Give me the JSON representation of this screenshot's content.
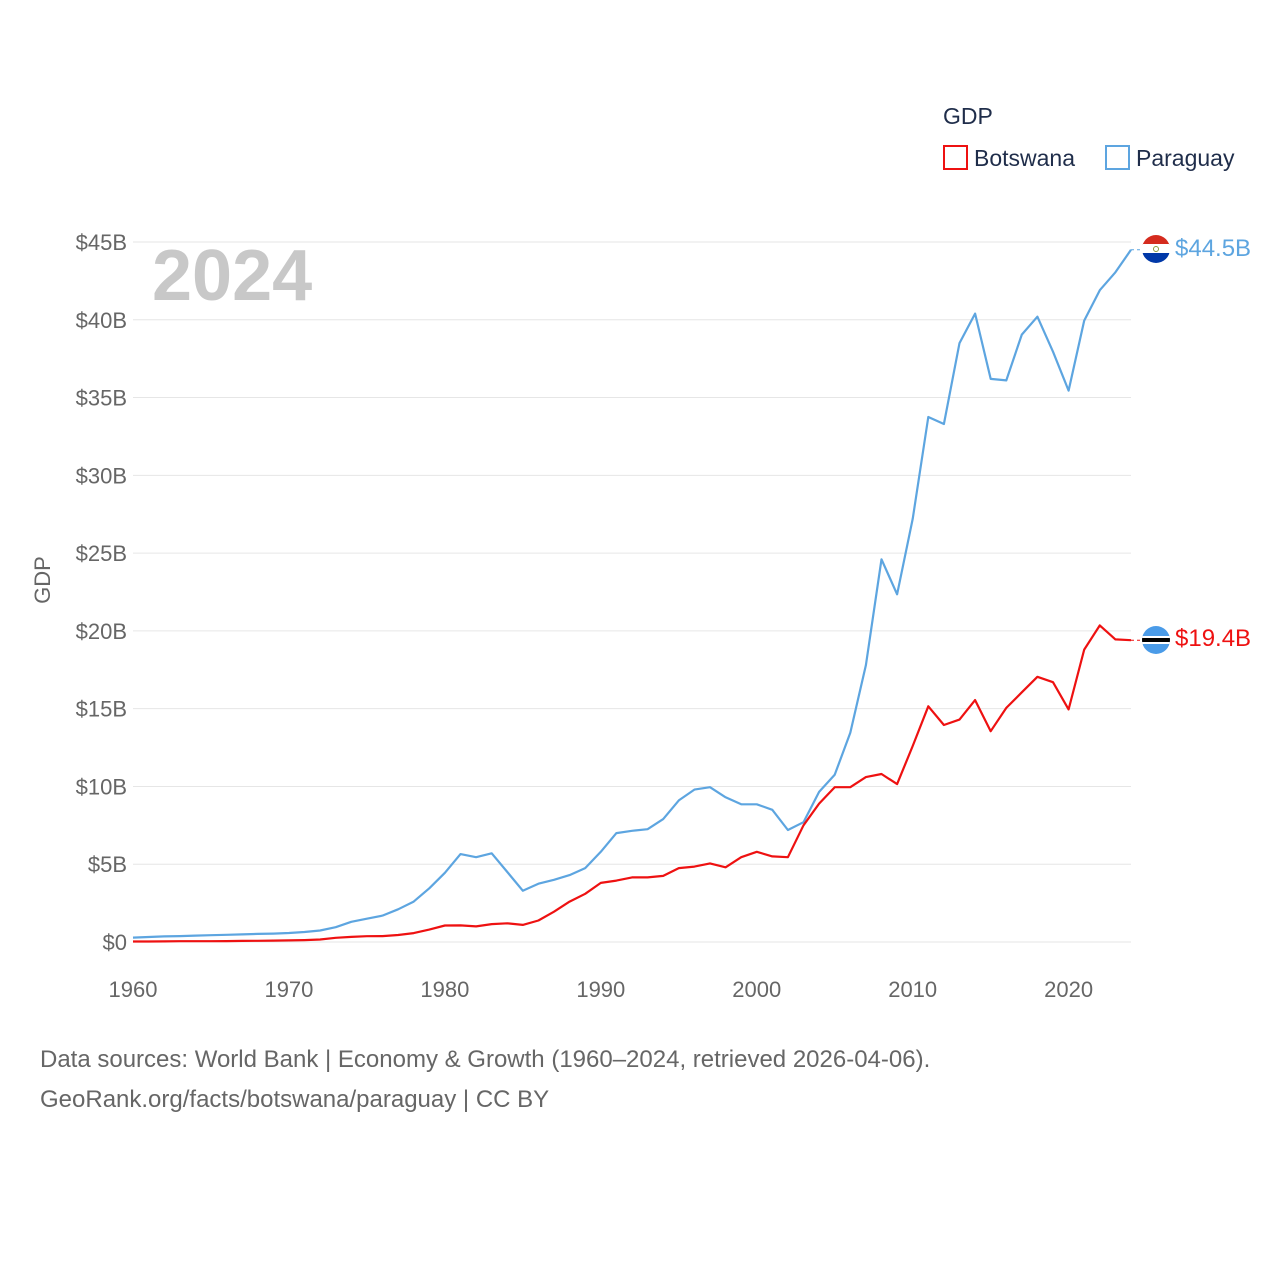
{
  "chart_data": {
    "type": "line",
    "year_label": "2024",
    "ylabel": "GDP",
    "legend": {
      "title": "GDP",
      "placement": "top-right"
    },
    "x": [
      1960,
      1961,
      1962,
      1963,
      1964,
      1965,
      1966,
      1967,
      1968,
      1969,
      1970,
      1971,
      1972,
      1973,
      1974,
      1975,
      1976,
      1977,
      1978,
      1979,
      1980,
      1981,
      1982,
      1983,
      1984,
      1985,
      1986,
      1987,
      1988,
      1989,
      1990,
      1991,
      1992,
      1993,
      1994,
      1995,
      1996,
      1997,
      1998,
      1999,
      2000,
      2001,
      2002,
      2003,
      2004,
      2005,
      2006,
      2007,
      2008,
      2009,
      2010,
      2011,
      2012,
      2013,
      2014,
      2015,
      2016,
      2017,
      2018,
      2019,
      2020,
      2021,
      2022,
      2023,
      2024
    ],
    "xlim": [
      1960,
      2024
    ],
    "xticks": [
      1960,
      1970,
      1980,
      1990,
      2000,
      2010,
      2020
    ],
    "ylim": [
      0,
      45
    ],
    "yticks": [
      0,
      5,
      10,
      15,
      20,
      25,
      30,
      35,
      40,
      45
    ],
    "ytick_labels": [
      "$0",
      "$5B",
      "$10B",
      "$15B",
      "$20B",
      "$25B",
      "$30B",
      "$35B",
      "$40B",
      "$45B"
    ],
    "series": [
      {
        "name": "Botswana",
        "color": "#ee1111",
        "end_label": "$19.4B",
        "flag": "botswana-flag",
        "values": [
          0.03,
          0.03,
          0.04,
          0.05,
          0.05,
          0.05,
          0.06,
          0.07,
          0.08,
          0.09,
          0.1,
          0.12,
          0.16,
          0.27,
          0.33,
          0.37,
          0.38,
          0.45,
          0.57,
          0.8,
          1.06,
          1.07,
          1.0,
          1.15,
          1.2,
          1.1,
          1.38,
          1.95,
          2.6,
          3.1,
          3.8,
          3.95,
          4.15,
          4.15,
          4.25,
          4.75,
          4.85,
          5.05,
          4.8,
          5.45,
          5.8,
          5.5,
          5.45,
          7.5,
          8.9,
          9.95,
          9.95,
          10.6,
          10.8,
          10.15,
          12.6,
          15.15,
          13.95,
          14.3,
          15.55,
          13.55,
          15.05,
          16.05,
          17.05,
          16.7,
          14.95,
          18.8,
          20.35,
          19.45,
          19.4
        ]
      },
      {
        "name": "Paraguay",
        "color": "#5da5e0",
        "end_label": "$44.5B",
        "flag": "paraguay-flag",
        "values": [
          0.28,
          0.32,
          0.36,
          0.38,
          0.41,
          0.44,
          0.46,
          0.49,
          0.52,
          0.54,
          0.58,
          0.64,
          0.74,
          0.95,
          1.3,
          1.5,
          1.7,
          2.1,
          2.6,
          3.45,
          4.45,
          5.65,
          5.45,
          5.7,
          4.5,
          3.3,
          3.75,
          4.0,
          4.3,
          4.75,
          5.8,
          7.0,
          7.15,
          7.25,
          7.9,
          9.1,
          9.8,
          9.95,
          9.3,
          8.85,
          8.85,
          8.5,
          7.2,
          7.7,
          9.65,
          10.75,
          13.45,
          17.8,
          24.6,
          22.35,
          27.2,
          33.75,
          33.3,
          38.5,
          40.4,
          36.2,
          36.1,
          39.05,
          40.2,
          37.95,
          35.45,
          39.95,
          41.9,
          43.05,
          44.5
        ]
      }
    ]
  },
  "footer": {
    "line1": "Data sources: World Bank | Economy & Growth (1960–2024, retrieved 2026-04-06).",
    "line2": "GeoRank.org/facts/botswana/paraguay | CC BY"
  }
}
